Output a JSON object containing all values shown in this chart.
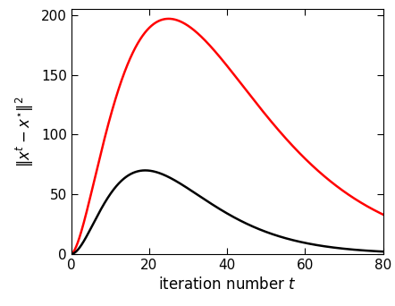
{
  "title": "",
  "xlabel": "iteration number $t$",
  "ylabel": "$\\|x^t - x^{\\star}\\|^2$",
  "xlim": [
    0,
    80
  ],
  "ylim": [
    0,
    205
  ],
  "xticks": [
    0,
    20,
    40,
    60,
    80
  ],
  "yticks": [
    0,
    50,
    100,
    150,
    200
  ],
  "line_red_color": "#ff0000",
  "line_black_color": "#000000",
  "line_width": 1.8,
  "figsize": [
    4.42,
    3.42
  ],
  "dpi": 100,
  "red_peak_t": 25,
  "red_peak_val": 197,
  "black_peak_t": 19,
  "black_peak_val": 70,
  "red_end_val": 33,
  "black_end_val": 2.0
}
